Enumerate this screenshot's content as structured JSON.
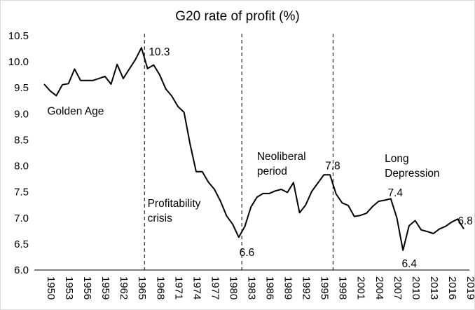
{
  "chart_data": {
    "type": "line",
    "title": "G20 rate of profit (%)",
    "xlabel": "",
    "ylabel": "",
    "xlim": [
      1950,
      2019
    ],
    "ylim": [
      6.0,
      10.5
    ],
    "ytick_labels": [
      "6.0",
      "6.5",
      "7.0",
      "7.5",
      "8.0",
      "8.5",
      "9.0",
      "9.5",
      "10.0",
      "10.5"
    ],
    "xtick_labels": [
      "1950",
      "1953",
      "1956",
      "1959",
      "1962",
      "1965",
      "1968",
      "1971",
      "1974",
      "1977",
      "1980",
      "1983",
      "1986",
      "1989",
      "1992",
      "1995",
      "1998",
      "2001",
      "2004",
      "2007",
      "2010",
      "2013",
      "2016",
      "2019"
    ],
    "grid": false,
    "legend": "none",
    "line_color": "#000000",
    "series": [
      {
        "x": [
          1950,
          1951,
          1952,
          1953,
          1954,
          1955,
          1956,
          1957,
          1958,
          1959,
          1960,
          1961,
          1962,
          1963,
          1964,
          1965,
          1966,
          1967,
          1968,
          1969,
          1970,
          1971,
          1972,
          1973,
          1974,
          1975,
          1976,
          1977,
          1978,
          1979,
          1980,
          1981,
          1982,
          1983,
          1984,
          1985,
          1986,
          1987,
          1988,
          1989,
          1990,
          1991,
          1992,
          1993,
          1994,
          1995,
          1996,
          1997,
          1998,
          1999,
          2000,
          2001,
          2002,
          2003,
          2004,
          2005,
          2006,
          2007,
          2008,
          2009,
          2010,
          2011,
          2012,
          2013,
          2014,
          2015,
          2016,
          2017,
          2018,
          2019
        ],
        "y": [
          9.57,
          9.44,
          9.35,
          9.56,
          9.58,
          9.86,
          9.64,
          9.64,
          9.64,
          9.68,
          9.72,
          9.57,
          9.95,
          9.68,
          9.86,
          10.04,
          10.27,
          9.87,
          9.94,
          9.75,
          9.48,
          9.34,
          9.14,
          9.03,
          8.42,
          7.89,
          7.89,
          7.69,
          7.55,
          7.32,
          7.04,
          6.88,
          6.63,
          6.84,
          7.21,
          7.4,
          7.47,
          7.47,
          7.52,
          7.55,
          7.49,
          7.68,
          7.1,
          7.25,
          7.51,
          7.67,
          7.83,
          7.83,
          7.46,
          7.29,
          7.24,
          7.03,
          7.05,
          7.09,
          7.22,
          7.32,
          7.34,
          7.37,
          7.0,
          6.38,
          6.85,
          6.95,
          6.77,
          6.74,
          6.7,
          6.79,
          6.84,
          6.92,
          6.98,
          6.79
        ]
      }
    ],
    "dividers": [
      1966.5,
      1982.5,
      1997.5
    ],
    "annotations": [
      {
        "text": "Golden Age",
        "x": 1950.5,
        "y": 9.05
      },
      {
        "text": "10.3",
        "x": 1967.2,
        "y": 10.19
      },
      {
        "text": "Profitability",
        "x": 1967.0,
        "y": 7.28
      },
      {
        "text": "crisis",
        "x": 1967.0,
        "y": 7.0
      },
      {
        "text": "6.6",
        "x": 1982.1,
        "y": 6.34
      },
      {
        "text": "Neoliberal",
        "x": 1985.0,
        "y": 8.18
      },
      {
        "text": "period",
        "x": 1985.0,
        "y": 7.9
      },
      {
        "text": "7.8",
        "x": 1996.2,
        "y": 8.0
      },
      {
        "text": "Long",
        "x": 2006.0,
        "y": 8.14
      },
      {
        "text": "Depression",
        "x": 2006.0,
        "y": 7.86
      },
      {
        "text": "7.4",
        "x": 2006.5,
        "y": 7.48
      },
      {
        "text": "6.4",
        "x": 2008.8,
        "y": 6.12
      },
      {
        "text": "6.8",
        "x": 2018.0,
        "y": 6.94
      }
    ]
  }
}
